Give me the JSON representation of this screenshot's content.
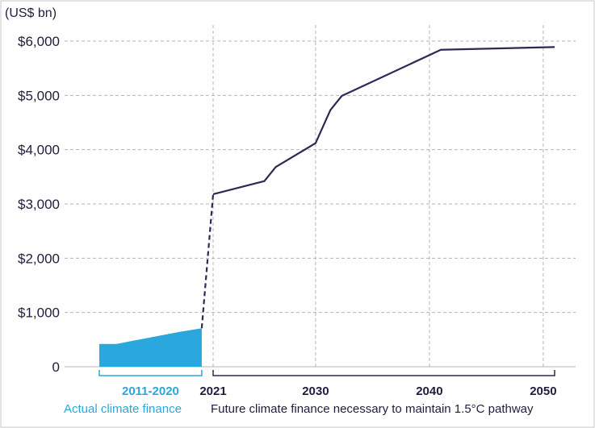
{
  "chart_data": {
    "type": "line",
    "y_unit_label": "(US$ bn)",
    "ylim": [
      0,
      6000
    ],
    "y_ticks": [
      {
        "value": 0,
        "label": "0"
      },
      {
        "value": 1000,
        "label": "$1,000"
      },
      {
        "value": 2000,
        "label": "$2,000"
      },
      {
        "value": 3000,
        "label": "$3,000"
      },
      {
        "value": 4000,
        "label": "$4,000"
      },
      {
        "value": 5000,
        "label": "$5,000"
      },
      {
        "value": 6000,
        "label": "$6,000"
      }
    ],
    "x_ticks": [
      {
        "value": 2021,
        "label": "2021"
      },
      {
        "value": 2030,
        "label": "2030"
      },
      {
        "value": 2040,
        "label": "2040"
      },
      {
        "value": 2050,
        "label": "2050"
      }
    ],
    "grid": true,
    "actual_series": {
      "style": "filled-area",
      "color": "#2aa7dc",
      "x": [
        2011,
        2012.5,
        2014,
        2016,
        2018,
        2020
      ],
      "y": [
        420,
        420,
        480,
        560,
        640,
        710
      ]
    },
    "connector": {
      "style": "dashed",
      "x": [
        2020,
        2021
      ],
      "y": [
        710,
        3180
      ]
    },
    "future_series": {
      "style": "line",
      "color": "#2b2a57",
      "x": [
        2021,
        2025.5,
        2026.5,
        2030,
        2031.3,
        2032.3,
        2041,
        2051
      ],
      "y": [
        3180,
        3420,
        3680,
        4120,
        4730,
        4990,
        5840,
        5890
      ]
    },
    "period_labels": {
      "actual_range": "2011-2020",
      "actual_caption": "Actual climate finance",
      "future_caption": "Future climate finance necessary to maintain 1.5°C pathway"
    }
  }
}
